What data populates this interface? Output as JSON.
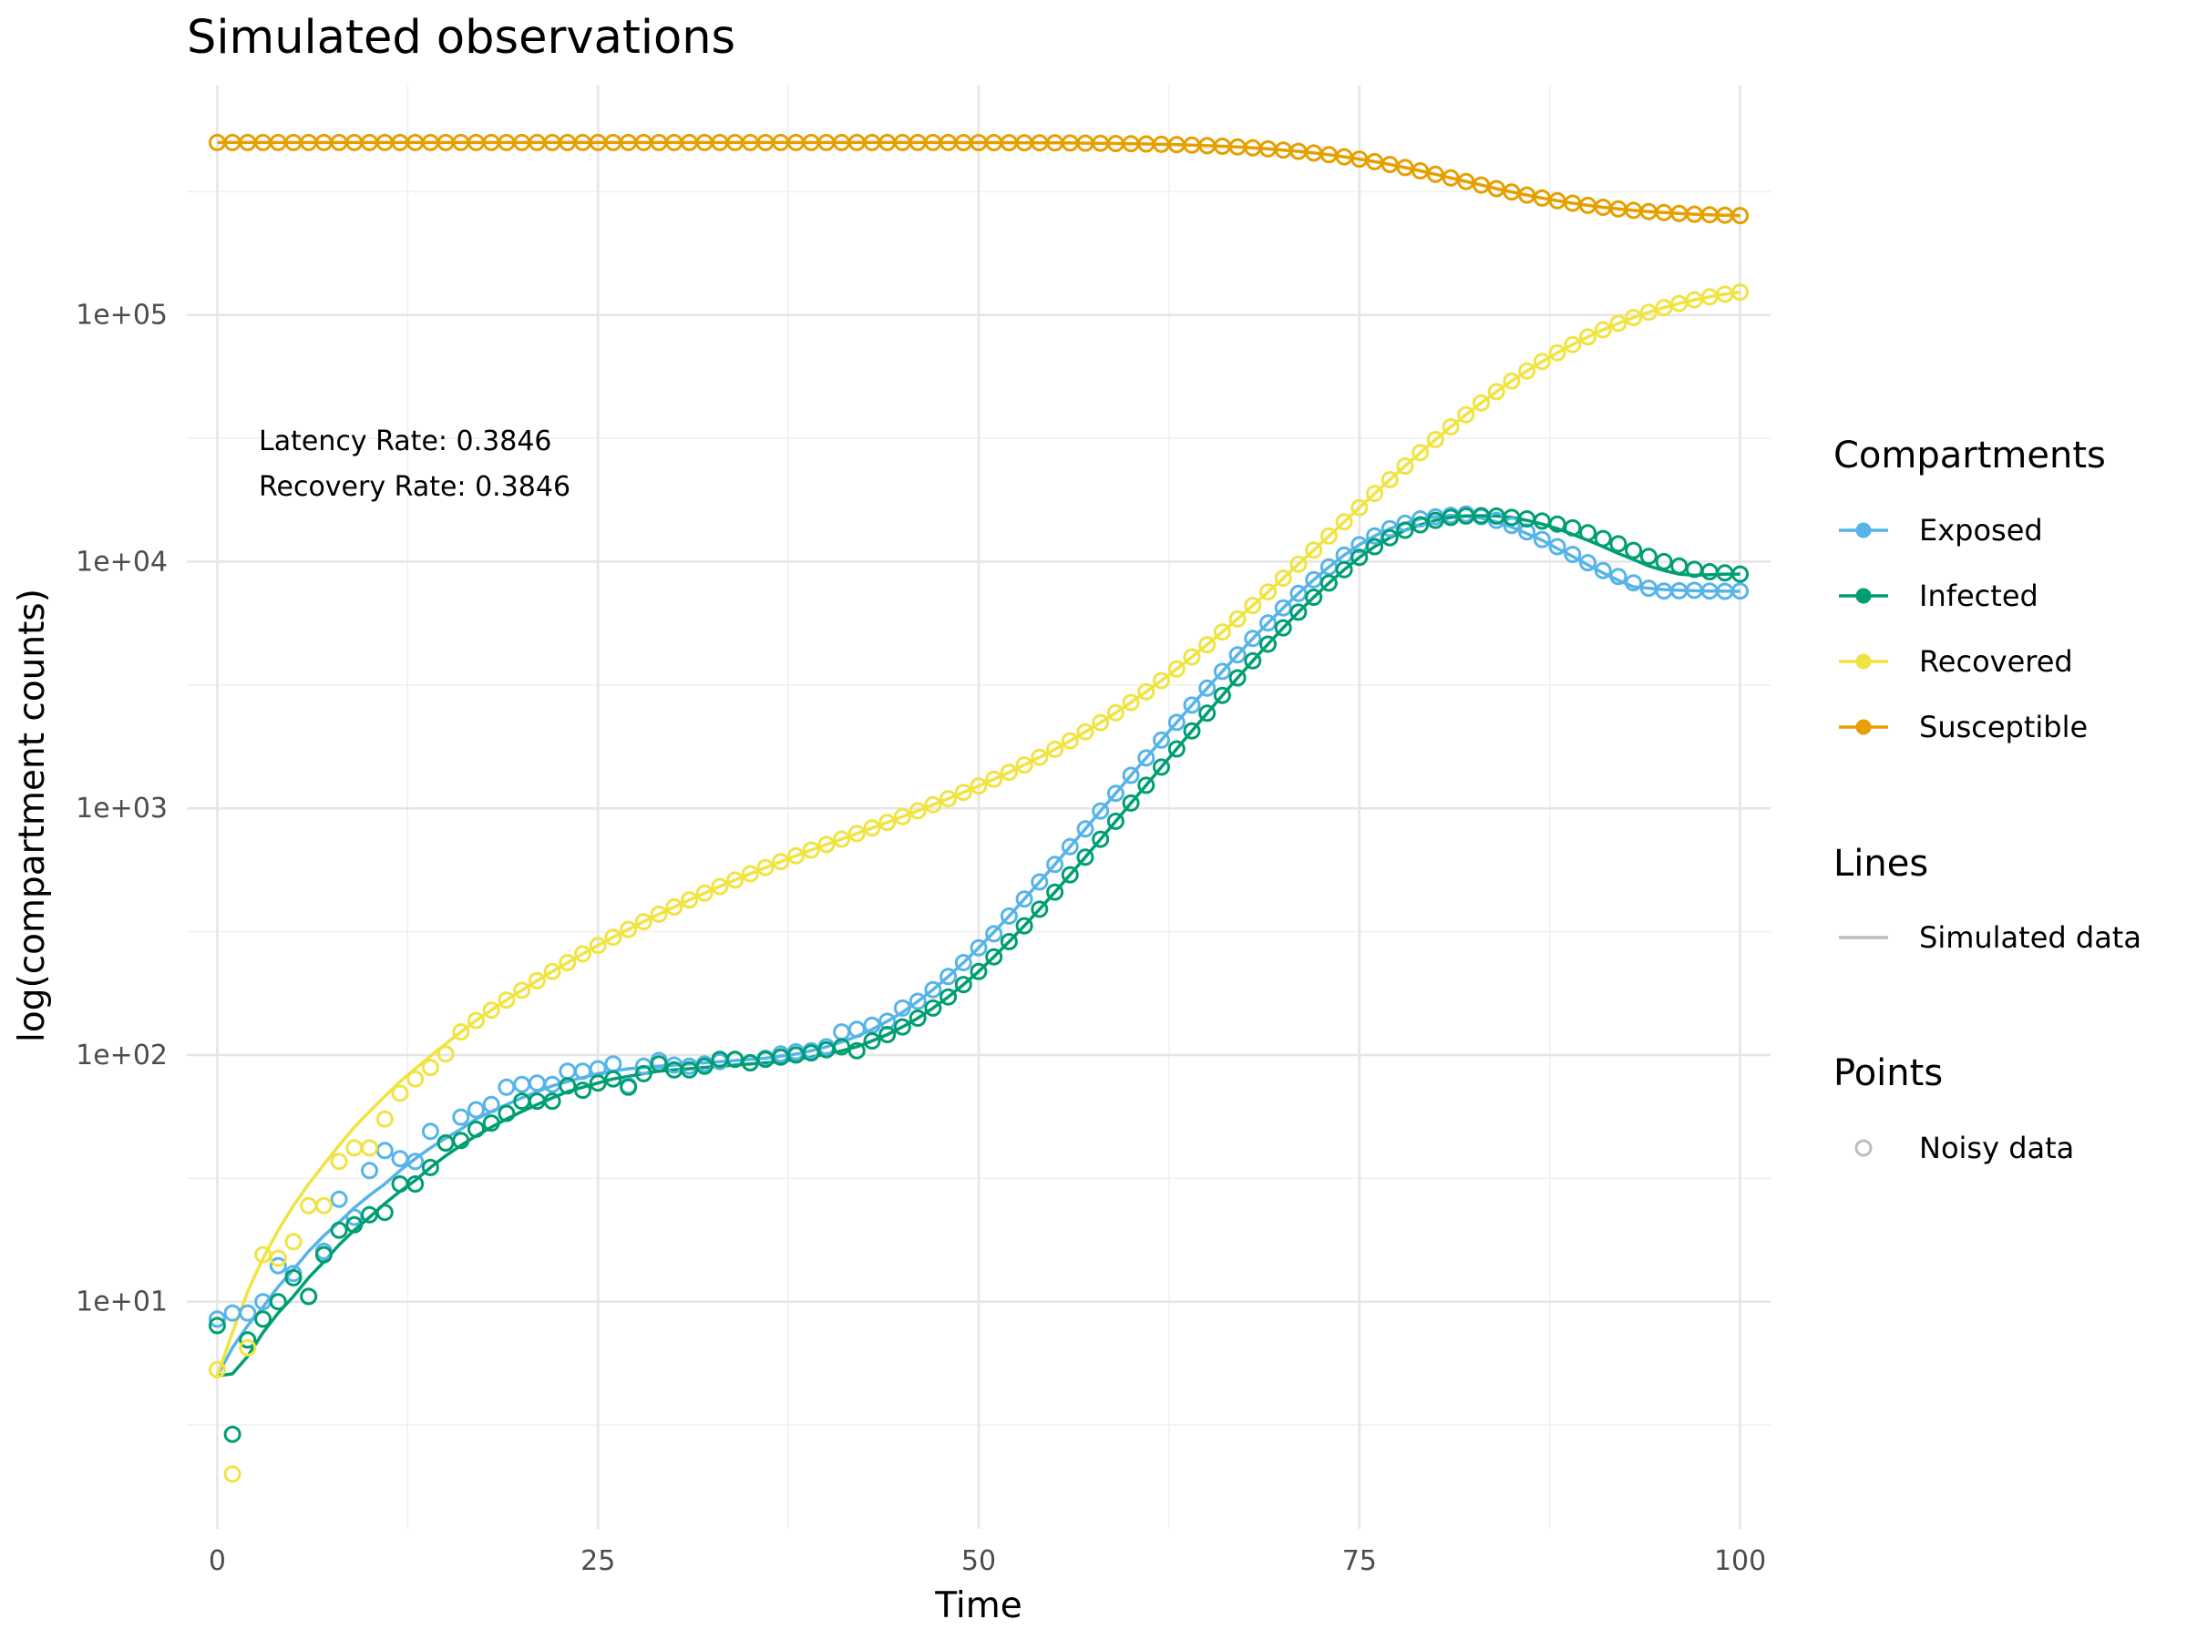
{
  "chart_data": {
    "type": "line",
    "title": "Simulated observations",
    "xlabel": "Time",
    "ylabel": "log(compartment counts)",
    "y_scale": "log10",
    "xlim": [
      -2,
      102
    ],
    "ylim": [
      1.2,
      850000
    ],
    "x_ticks": [
      0,
      25,
      50,
      75,
      100
    ],
    "x_tick_labels": [
      "0",
      "25",
      "50",
      "75",
      "100"
    ],
    "y_ticks": [
      10,
      100,
      1000,
      10000,
      100000
    ],
    "y_tick_labels": [
      "1e+01",
      "1e+02",
      "1e+03",
      "1e+04",
      "1e+05"
    ],
    "grid": true,
    "annotations": [
      "Latency Rate: 0.3846",
      "Recovery Rate: 0.3846"
    ],
    "legend_position": "right",
    "legend": {
      "compartments_title": "Compartments",
      "lines_title": "Lines",
      "lines_label": "Simulated data",
      "points_title": "Points",
      "points_label": "Noisy data"
    },
    "x": [
      0,
      1,
      2,
      3,
      4,
      5,
      6,
      7,
      8,
      9,
      10,
      11,
      12,
      13,
      14,
      15,
      16,
      17,
      18,
      19,
      20,
      21,
      22,
      23,
      24,
      25,
      26,
      27,
      28,
      29,
      30,
      31,
      32,
      33,
      34,
      35,
      36,
      37,
      38,
      39,
      40,
      41,
      42,
      43,
      44,
      45,
      46,
      47,
      48,
      49,
      50,
      51,
      52,
      53,
      54,
      55,
      56,
      57,
      58,
      59,
      60,
      61,
      62,
      63,
      64,
      65,
      66,
      67,
      68,
      69,
      70,
      71,
      72,
      73,
      74,
      75,
      76,
      77,
      78,
      79,
      80,
      81,
      82,
      83,
      84,
      85,
      86,
      87,
      88,
      89,
      90,
      91,
      92,
      93,
      94,
      95,
      96,
      97,
      98,
      99,
      100
    ],
    "series": [
      {
        "name": "Exposed",
        "color": "#56B4E9",
        "sim": [
          5,
          6.5,
          8,
          9.5,
          11.5,
          13.5,
          16,
          18.5,
          21,
          24,
          27,
          30,
          34,
          38,
          42,
          46,
          50,
          55,
          59,
          63,
          67,
          71,
          75,
          78,
          81,
          84,
          86,
          88,
          89,
          90,
          91,
          92,
          93,
          94,
          95,
          96,
          97,
          99,
          101,
          104,
          108,
          113,
          119,
          127,
          137,
          149,
          165,
          184,
          208,
          237,
          272,
          315,
          366,
          429,
          503,
          592,
          699,
          825,
          975,
          1150,
          1360,
          1600,
          1890,
          2230,
          2620,
          3070,
          3590,
          4190,
          4880,
          5640,
          6490,
          7430,
          8440,
          9520,
          10620,
          11700,
          12700,
          13600,
          14300,
          14900,
          15200,
          15400,
          15300,
          15000,
          14500,
          13800,
          13000,
          12200,
          11300,
          10500,
          9700,
          9000,
          8400,
          7900,
          7800,
          7700,
          7650,
          7620,
          7600,
          7590,
          7580
        ],
        "noisy": [
          8.5,
          9,
          9,
          10,
          14,
          13,
          10.5,
          16,
          26,
          22,
          34,
          41,
          38,
          37,
          49,
          44,
          56,
          60,
          63,
          74,
          76,
          77,
          76,
          86,
          86,
          88,
          92,
          75,
          90,
          95,
          91,
          90,
          92,
          94,
          96,
          93,
          97,
          101,
          103,
          104,
          108,
          124,
          127,
          132,
          137,
          155,
          165,
          184,
          208,
          237,
          272,
          310,
          366,
          429,
          503,
          592,
          699,
          825,
          975,
          1150,
          1360,
          1600,
          1890,
          2230,
          2620,
          3070,
          3590,
          4190,
          4880,
          5640,
          6490,
          7430,
          8440,
          9520,
          10620,
          11700,
          12700,
          13600,
          14300,
          14900,
          15200,
          15400,
          15600,
          15200,
          14700,
          14000,
          13200,
          12300,
          11500,
          10700,
          9900,
          9200,
          8700,
          8200,
          7800,
          7600,
          7620,
          7650,
          7600,
          7580,
          7600
        ]
      },
      {
        "name": "Infected",
        "color": "#009E73",
        "sim": [
          5,
          5.1,
          6,
          7.5,
          9,
          10.5,
          12.5,
          14.5,
          17,
          19.5,
          22,
          25,
          28,
          31,
          35,
          39,
          43,
          47,
          51,
          55,
          59,
          63,
          67,
          71,
          74,
          77,
          80,
          82,
          84,
          86,
          87,
          88,
          89,
          90,
          91,
          92,
          93,
          94,
          96,
          98,
          101,
          104,
          108,
          114,
          121,
          130,
          141,
          155,
          172,
          193,
          218,
          250,
          288,
          334,
          390,
          457,
          538,
          634,
          749,
          886,
          1050,
          1240,
          1470,
          1740,
          2060,
          2430,
          2870,
          3380,
          3960,
          4630,
          5390,
          6240,
          7170,
          8190,
          9270,
          10400,
          11500,
          12500,
          13400,
          14100,
          14700,
          15100,
          15300,
          15350,
          15300,
          15100,
          14700,
          14200,
          13600,
          12900,
          12200,
          11500,
          10800,
          10200,
          9600,
          9200,
          8900,
          8800,
          8850,
          8900,
          8900
        ],
        "noisy": [
          8,
          2.9,
          7,
          8.5,
          10,
          12.5,
          10.5,
          15.5,
          19.5,
          20.5,
          22.5,
          23,
          30,
          30,
          35,
          44,
          45,
          50,
          53,
          58,
          65,
          65,
          65,
          75,
          72,
          77,
          80,
          74,
          84,
          92,
          87,
          87,
          90,
          96,
          96,
          93,
          96,
          98,
          100,
          102,
          105,
          108,
          104,
          114,
          121,
          130,
          141,
          155,
          172,
          193,
          218,
          250,
          288,
          334,
          390,
          457,
          538,
          634,
          749,
          886,
          1050,
          1240,
          1470,
          1740,
          2060,
          2430,
          2870,
          3380,
          3960,
          4630,
          5390,
          6240,
          7170,
          8190,
          9270,
          10400,
          11500,
          12500,
          13400,
          14100,
          14700,
          15100,
          15300,
          15350,
          15300,
          15100,
          14900,
          14600,
          14200,
          13700,
          13100,
          12400,
          11800,
          11100,
          10500,
          10000,
          9600,
          9300,
          9100,
          9000,
          8900
        ]
      },
      {
        "name": "Recovered",
        "color": "#F0E442",
        "sim": [
          5,
          7.5,
          11,
          15,
          19.5,
          24.5,
          30,
          36,
          43,
          51,
          59,
          68,
          78,
          88,
          99,
          111,
          124,
          138,
          152,
          167,
          183,
          200,
          218,
          237,
          257,
          278,
          300,
          323,
          347,
          372,
          398,
          425,
          453,
          482,
          512,
          543,
          575,
          608,
          642,
          677,
          713,
          750,
          790,
          832,
          877,
          925,
          977,
          1033,
          1094,
          1160,
          1232,
          1312,
          1400,
          1498,
          1609,
          1734,
          1877,
          2040,
          2226,
          2440,
          2686,
          2968,
          3293,
          3669,
          4104,
          4606,
          5186,
          5858,
          6636,
          7534,
          8570,
          9762,
          11130,
          12700,
          14500,
          16550,
          18870,
          21480,
          24400,
          27650,
          31240,
          35170,
          39430,
          44000,
          48850,
          53950,
          59250,
          64700,
          70250,
          75850,
          81450,
          87000,
          92400,
          97600,
          102500,
          107100,
          111300,
          115100,
          118400,
          121300,
          123700
        ],
        "noisy": [
          5.3,
          2,
          6.5,
          15.5,
          15,
          17.5,
          24.5,
          24.5,
          37,
          42,
          42,
          55,
          70,
          80,
          89,
          101,
          124,
          138,
          152,
          167,
          183,
          200,
          218,
          237,
          257,
          278,
          300,
          323,
          347,
          372,
          398,
          425,
          453,
          482,
          512,
          543,
          575,
          608,
          642,
          677,
          713,
          750,
          790,
          832,
          877,
          925,
          977,
          1033,
          1094,
          1160,
          1232,
          1312,
          1400,
          1498,
          1609,
          1734,
          1877,
          2040,
          2226,
          2440,
          2686,
          2968,
          3293,
          3669,
          4104,
          4606,
          5186,
          5858,
          6636,
          7534,
          8570,
          9762,
          11130,
          12700,
          14500,
          16550,
          18870,
          21480,
          24400,
          27650,
          31240,
          35170,
          39430,
          44000,
          48850,
          53950,
          59250,
          64700,
          70250,
          75850,
          81450,
          87000,
          92400,
          97600,
          102500,
          107100,
          111300,
          115100,
          118400,
          121300,
          123700
        ]
      },
      {
        "name": "Susceptible",
        "color": "#E69F00",
        "sim": [
          500000,
          500000,
          500000,
          500000,
          500000,
          500000,
          500000,
          500000,
          500000,
          500000,
          500000,
          500000,
          500000,
          500000,
          500000,
          500000,
          500000,
          500000,
          500000,
          500000,
          500000,
          500000,
          500000,
          500000,
          500000,
          500000,
          500000,
          500000,
          500000,
          500000,
          500000,
          500000,
          500000,
          500000,
          500000,
          500000,
          500000,
          500000,
          500000,
          500000,
          500000,
          500000,
          500000,
          500000,
          500000,
          500000,
          500000,
          499900,
          499800,
          499700,
          499600,
          499400,
          499200,
          498900,
          498600,
          498200,
          497700,
          497100,
          496400,
          495500,
          494500,
          493200,
          491700,
          490000,
          487900,
          485500,
          482700,
          479400,
          475600,
          471200,
          466100,
          460200,
          453500,
          446000,
          437600,
          428300,
          418200,
          407300,
          395800,
          383800,
          371500,
          359300,
          347400,
          336000,
          325200,
          315200,
          306000,
          297700,
          290300,
          283800,
          278100,
          273200,
          269000,
          265400,
          262400,
          259900,
          257800,
          256100,
          254700,
          253600,
          252700
        ],
        "noisy": [
          500000,
          500000,
          500000,
          500000,
          500000,
          500000,
          500000,
          500000,
          500000,
          500000,
          500000,
          500000,
          500000,
          500000,
          500000,
          500000,
          500000,
          500000,
          500000,
          500000,
          500000,
          500000,
          500000,
          500000,
          500000,
          500000,
          500000,
          500000,
          500000,
          500000,
          500000,
          500000,
          500000,
          500000,
          500000,
          500000,
          500000,
          500000,
          500000,
          500000,
          500000,
          500000,
          500000,
          500000,
          500000,
          500000,
          500000,
          499900,
          499800,
          499700,
          499600,
          499400,
          499200,
          498900,
          498600,
          498200,
          497700,
          497100,
          496400,
          495500,
          494500,
          493200,
          491700,
          490000,
          487900,
          485500,
          482700,
          479400,
          475600,
          471200,
          466100,
          460200,
          453500,
          446000,
          437600,
          428300,
          418200,
          407300,
          395800,
          383800,
          371500,
          359300,
          347400,
          336000,
          325200,
          315200,
          306000,
          297700,
          290300,
          283800,
          278100,
          273200,
          269000,
          265400,
          262400,
          259900,
          257800,
          256100,
          254700,
          253600,
          252700
        ]
      }
    ]
  }
}
